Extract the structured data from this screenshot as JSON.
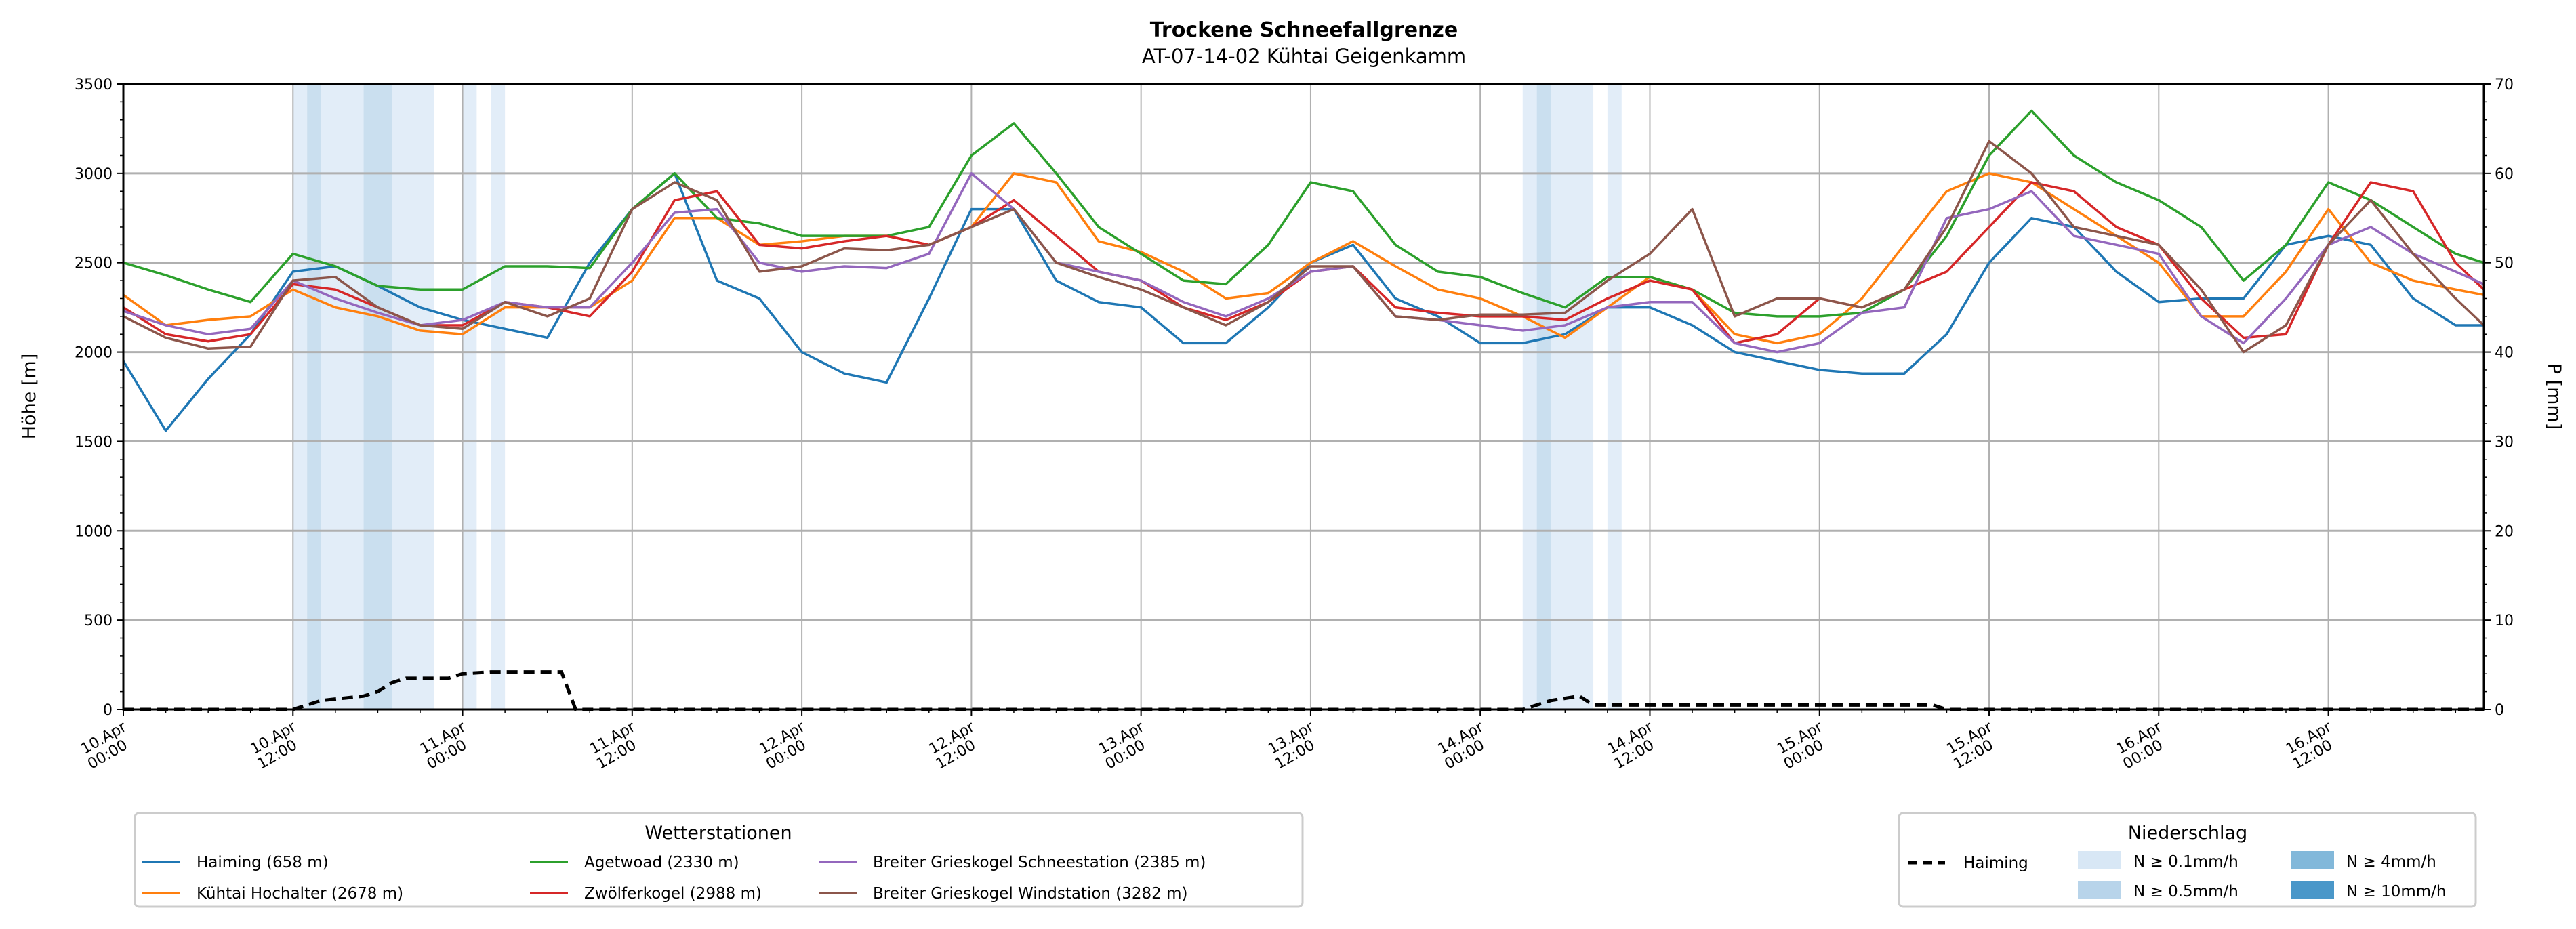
{
  "chart_data": {
    "type": "line",
    "title": "Trockene Schneefallgrenze",
    "subtitle": "AT-07-14-02 Kühtai Geigenkamm",
    "ylabel": "Höhe [m]",
    "ylabel_right": "P [mm]",
    "ylim": [
      0,
      3500
    ],
    "ylim_right": [
      0,
      70
    ],
    "xlim_hours": [
      0,
      167
    ],
    "grid": true,
    "yticks": [
      "0",
      "500",
      "1000",
      "1500",
      "2000",
      "2500",
      "3000",
      "3500"
    ],
    "yticks_right": [
      "0",
      "10",
      "20",
      "30",
      "40",
      "50",
      "60",
      "70"
    ],
    "xticks": [
      [
        "10.Apr",
        "00:00"
      ],
      [
        "10.Apr",
        "12:00"
      ],
      [
        "11.Apr",
        "00:00"
      ],
      [
        "11.Apr",
        "12:00"
      ],
      [
        "12.Apr",
        "00:00"
      ],
      [
        "12.Apr",
        "12:00"
      ],
      [
        "13.Apr",
        "00:00"
      ],
      [
        "13.Apr",
        "12:00"
      ],
      [
        "14.Apr",
        "00:00"
      ],
      [
        "14.Apr",
        "12:00"
      ],
      [
        "15.Apr",
        "00:00"
      ],
      [
        "15.Apr",
        "12:00"
      ],
      [
        "16.Apr",
        "00:00"
      ],
      [
        "16.Apr",
        "12:00"
      ]
    ],
    "x_step_hours": 3,
    "series": [
      {
        "name": "Haiming (658 m)",
        "color": "#1f77b4",
        "values": [
          1950,
          1560,
          1850,
          2100,
          2450,
          2480,
          2370,
          2250,
          2180,
          2130,
          2080,
          2500,
          2800,
          3000,
          2400,
          2300,
          2000,
          1880,
          1830,
          2300,
          2800,
          2800,
          2400,
          2280,
          2250,
          2050,
          2050,
          2250,
          2500,
          2600,
          2300,
          2200,
          2050,
          2050,
          2100,
          2250,
          2250,
          2150,
          2000,
          1950,
          1900,
          1880,
          1880,
          2100,
          2500,
          2750,
          2700,
          2450,
          2280,
          2300,
          2300,
          2600,
          2650,
          2600,
          2300,
          2150,
          2150
        ]
      },
      {
        "name": "Kühtai Hochalter (2678 m)",
        "color": "#ff7f0e",
        "values": [
          2320,
          2150,
          2180,
          2200,
          2350,
          2250,
          2200,
          2120,
          2100,
          2250,
          2250,
          2250,
          2400,
          2750,
          2750,
          2600,
          2620,
          2650,
          2650,
          2600,
          2700,
          3000,
          2950,
          2620,
          2560,
          2450,
          2300,
          2330,
          2500,
          2620,
          2480,
          2350,
          2300,
          2200,
          2080,
          2250,
          2420,
          2350,
          2100,
          2050,
          2100,
          2300,
          2600,
          2900,
          3000,
          2950,
          2800,
          2650,
          2500,
          2200,
          2200,
          2450,
          2800,
          2500,
          2400,
          2350,
          2320
        ]
      },
      {
        "name": "Agetwoad (2330 m)",
        "color": "#2ca02c",
        "values": [
          2500,
          2430,
          2350,
          2280,
          2550,
          2480,
          2370,
          2350,
          2350,
          2480,
          2480,
          2470,
          2800,
          3000,
          2750,
          2720,
          2650,
          2650,
          2650,
          2700,
          3100,
          3280,
          3000,
          2700,
          2550,
          2400,
          2380,
          2600,
          2950,
          2900,
          2600,
          2450,
          2420,
          2330,
          2250,
          2420,
          2420,
          2350,
          2220,
          2200,
          2200,
          2220,
          2350,
          2650,
          3100,
          3350,
          3100,
          2950,
          2850,
          2700,
          2400,
          2600,
          2950,
          2850,
          2700,
          2550,
          2500
        ]
      },
      {
        "name": "Zwölferkogel (2988 m)",
        "color": "#d62728",
        "values": [
          2250,
          2100,
          2060,
          2100,
          2380,
          2350,
          2250,
          2150,
          2150,
          2280,
          2250,
          2200,
          2450,
          2850,
          2900,
          2600,
          2580,
          2620,
          2650,
          2600,
          2700,
          2850,
          2650,
          2450,
          2400,
          2250,
          2180,
          2280,
          2450,
          2480,
          2250,
          2220,
          2200,
          2200,
          2180,
          2300,
          2400,
          2350,
          2050,
          2100,
          2300,
          2250,
          2350,
          2450,
          2700,
          2950,
          2900,
          2700,
          2600,
          2300,
          2080,
          2100,
          2600,
          2950,
          2900,
          2500,
          2350
        ]
      },
      {
        "name": "Breiter Grieskogel Schneestation (2385 m)",
        "color": "#9467bd",
        "values": [
          2230,
          2150,
          2100,
          2130,
          2400,
          2300,
          2220,
          2150,
          2180,
          2280,
          2250,
          2250,
          2500,
          2780,
          2800,
          2500,
          2450,
          2480,
          2470,
          2550,
          3000,
          2800,
          2500,
          2450,
          2400,
          2280,
          2200,
          2300,
          2450,
          2480,
          2200,
          2180,
          2150,
          2120,
          2150,
          2250,
          2280,
          2280,
          2050,
          2000,
          2050,
          2220,
          2250,
          2750,
          2800,
          2900,
          2650,
          2600,
          2550,
          2200,
          2050,
          2300,
          2600,
          2700,
          2550,
          2450,
          2380
        ]
      },
      {
        "name": "Breiter Grieskogel Windstation (3282 m)",
        "color": "#8c564b",
        "values": [
          2200,
          2080,
          2020,
          2030,
          2400,
          2420,
          2250,
          2150,
          2130,
          2280,
          2200,
          2300,
          2800,
          2950,
          2850,
          2450,
          2480,
          2580,
          2570,
          2600,
          2700,
          2800,
          2500,
          2420,
          2350,
          2250,
          2150,
          2280,
          2480,
          2480,
          2200,
          2180,
          2210,
          2210,
          2220,
          2400,
          2550,
          2800,
          2200,
          2300,
          2300,
          2250,
          2350,
          2700,
          3180,
          3000,
          2700,
          2650,
          2600,
          2350,
          2000,
          2150,
          2600,
          2850,
          2550,
          2300,
          2150
        ]
      }
    ],
    "precip_series": {
      "name": "Haiming",
      "color": "#000000",
      "points_hours_mm": [
        [
          0,
          0
        ],
        [
          12,
          0
        ],
        [
          13,
          0.5
        ],
        [
          14,
          1
        ],
        [
          17,
          1.5
        ],
        [
          18,
          2
        ],
        [
          19,
          3
        ],
        [
          20,
          3.5
        ],
        [
          23,
          3.5
        ],
        [
          24,
          4
        ],
        [
          26,
          4.2
        ],
        [
          31,
          4.2
        ],
        [
          32,
          0
        ],
        [
          99,
          0
        ],
        [
          101,
          1
        ],
        [
          103,
          1.5
        ],
        [
          104,
          0.5
        ],
        [
          128,
          0.5
        ],
        [
          129,
          0
        ],
        [
          167,
          0
        ]
      ]
    },
    "precip_bands_hours": [
      [
        12,
        13,
        "0.1"
      ],
      [
        13,
        14,
        "0.5"
      ],
      [
        14,
        17,
        "0.1"
      ],
      [
        17,
        19,
        "0.5"
      ],
      [
        19,
        22,
        "0.1"
      ],
      [
        24,
        25,
        "0.1"
      ],
      [
        26,
        27,
        "0.1"
      ],
      [
        99,
        100,
        "0.1"
      ],
      [
        100,
        101,
        "0.5"
      ],
      [
        101,
        104,
        "0.1"
      ],
      [
        105,
        106,
        "0.1"
      ]
    ],
    "legend_stations": {
      "title": "Wetterstationen",
      "placement": "bottom-left"
    },
    "legend_precip": {
      "title": "Niederschlag",
      "placement": "bottom-right",
      "line_label": "Haiming",
      "levels": [
        {
          "key": "0.1",
          "label": "N ≥ 0.1mm/h",
          "color": "#d8e7f5"
        },
        {
          "key": "0.5",
          "label": "N ≥ 0.5mm/h",
          "color": "#b8d4ea"
        },
        {
          "key": "4",
          "label": "N ≥ 4mm/h",
          "color": "#82b8da"
        },
        {
          "key": "10",
          "label": "N ≥ 10mm/h",
          "color": "#4a97c9"
        }
      ]
    }
  }
}
